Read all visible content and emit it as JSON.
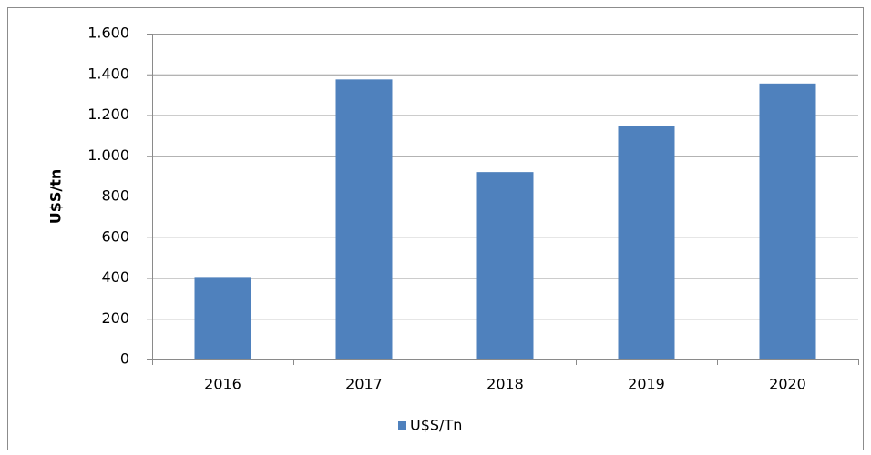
{
  "chart_data": {
    "type": "bar",
    "y_label": "U$S/tn",
    "categories": [
      "2016",
      "2017",
      "2018",
      "2019",
      "2020"
    ],
    "series": [
      {
        "name": "U$S/Tn",
        "color": "#4f81bd",
        "values": [
          405,
          1375,
          920,
          1148,
          1355
        ]
      }
    ],
    "ylim": [
      0,
      1600
    ],
    "yticks": [
      0,
      200,
      400,
      600,
      800,
      {
        "value": 1000,
        "label": "1.000"
      },
      {
        "value": 1200,
        "label": "1.200"
      },
      {
        "value": 1400,
        "label": "1.400"
      },
      {
        "value": 1600,
        "label": "1.600"
      }
    ],
    "grid": true,
    "legend": "bottom"
  }
}
